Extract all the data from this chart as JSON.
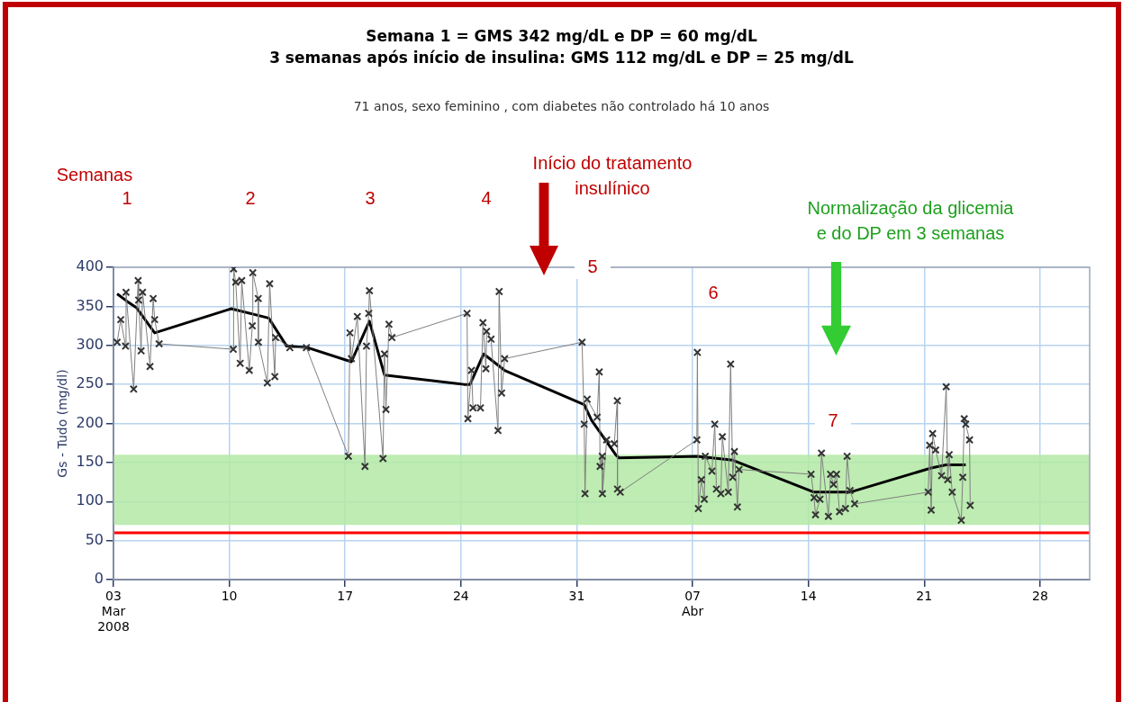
{
  "chart_data": {
    "type": "line",
    "title": "Semana 1 = GMS 342 mg/dL e DP = 60 mg/dL\n3 semanas após início de insulina: GMS 112 mg/dL e DP = 25 mg/dL",
    "subtitle": "71 anos, sexo feminino , com diabetes não controlado há 10 anos",
    "ylabel": "Gs - Tudo (mg/dl)",
    "annotations": [
      "Semanas",
      "1",
      "2",
      "3",
      "4",
      "5",
      "6",
      "7",
      "Início do tratamento insulínico",
      "Normalização da glicemia e do DP em 3 semanas"
    ],
    "xlim": [
      "2008-03-03",
      "2008-05-01"
    ],
    "xticks": [
      {
        "value": "2008-03-03",
        "label": "03\nMar\n2008"
      },
      {
        "value": "2008-03-10",
        "label": "10"
      },
      {
        "value": "2008-03-17",
        "label": "17"
      },
      {
        "value": "2008-03-24",
        "label": "24"
      },
      {
        "value": "2008-03-31",
        "label": "31"
      },
      {
        "value": "2008-04-07",
        "label": "07\nAbr"
      },
      {
        "value": "2008-04-14",
        "label": "14"
      },
      {
        "value": "2008-04-21",
        "label": "21"
      },
      {
        "value": "2008-04-28",
        "label": "28"
      }
    ],
    "ylim": [
      0,
      400
    ],
    "yticks": [
      0,
      50,
      100,
      150,
      200,
      250,
      300,
      350,
      400
    ],
    "grid": true,
    "legend": false,
    "bands": [
      {
        "axis": "y",
        "from": 70,
        "to": 160,
        "color": "#b3e9a5"
      }
    ],
    "ref_lines": [
      {
        "axis": "y",
        "value": 60,
        "color": "#ff0000"
      }
    ],
    "series": [
      {
        "marker": "cross",
        "color": "#7f7f7f",
        "x": [
          "2008-03-03T05:17",
          "2008-03-03T10:34",
          "2008-03-03T17:31",
          "2008-03-03T18:14",
          "2008-03-04T05:17",
          "2008-03-04T11:46",
          "2008-03-04T12:29",
          "2008-03-04T16:05",
          "2008-03-04T18:14",
          "2008-03-05T05:02",
          "2008-03-05T09:36",
          "2008-03-05T11:46",
          "2008-03-05T18:14",
          "2008-03-10T05:46",
          "2008-03-10T06:14",
          "2008-03-10T09:22",
          "2008-03-10T15:50",
          "2008-03-10T18:00",
          "2008-03-11T05:02",
          "2008-03-11T09:22",
          "2008-03-11T10:05",
          "2008-03-11T18:00",
          "2008-03-11T18:14",
          "2008-03-12T07:12",
          "2008-03-12T10:34",
          "2008-03-12T18:00",
          "2008-03-12T19:12",
          "2008-03-13T15:50",
          "2008-03-14T15:50",
          "2008-03-17T04:48",
          "2008-03-17T06:58",
          "2008-03-17T09:07",
          "2008-03-17T17:46",
          "2008-03-18T04:48",
          "2008-03-18T06:58",
          "2008-03-18T10:19",
          "2008-03-18T11:17",
          "2008-03-19T06:58",
          "2008-03-19T09:07",
          "2008-03-19T11:17",
          "2008-03-19T15:36",
          "2008-03-19T19:55",
          "2008-03-24T08:53",
          "2008-03-24T10:05",
          "2008-03-24T15:22",
          "2008-03-24T17:31",
          "2008-03-25T04:19",
          "2008-03-25T07:55",
          "2008-03-25T12:14",
          "2008-03-25T13:12",
          "2008-03-25T19:41",
          "2008-03-26T05:46",
          "2008-03-26T07:26",
          "2008-03-26T11:02",
          "2008-03-26T15:22",
          "2008-03-31T07:41",
          "2008-03-31T10:48",
          "2008-03-31T12:00",
          "2008-03-31T15:07",
          "2008-04-01T05:31",
          "2008-04-01T08:38",
          "2008-04-01T09:50",
          "2008-04-01T12:58",
          "2008-04-01T13:12",
          "2008-04-01T19:26",
          "2008-04-02T06:29",
          "2008-04-02T10:48",
          "2008-04-02T11:02",
          "2008-04-02T15:07",
          "2008-04-07T06:14",
          "2008-04-07T06:58",
          "2008-04-07T08:24",
          "2008-04-07T12:43",
          "2008-04-07T17:02",
          "2008-04-07T18:29",
          "2008-04-08T04:05",
          "2008-04-08T08:10",
          "2008-04-08T10:34",
          "2008-04-08T17:02",
          "2008-04-08T19:12",
          "2008-04-09T03:50",
          "2008-04-09T07:12",
          "2008-04-09T10:19",
          "2008-04-09T12:43",
          "2008-04-09T17:02",
          "2008-04-09T19:26",
          "2008-04-14T03:50",
          "2008-04-14T08:10",
          "2008-04-14T10:19",
          "2008-04-14T16:48",
          "2008-04-14T18:58",
          "2008-04-15T05:02",
          "2008-04-15T08:10",
          "2008-04-15T12:29",
          "2008-04-15T16:48",
          "2008-04-15T21:07",
          "2008-04-16T05:46",
          "2008-04-16T08:10",
          "2008-04-16T12:29",
          "2008-04-16T18:58",
          "2008-04-21T05:46",
          "2008-04-21T07:55",
          "2008-04-21T10:05",
          "2008-04-21T12:14",
          "2008-04-21T16:34",
          "2008-04-22T01:12",
          "2008-04-22T07:55",
          "2008-04-22T10:05",
          "2008-04-22T12:14",
          "2008-04-22T16:34",
          "2008-04-23T05:46",
          "2008-04-23T07:55",
          "2008-04-23T10:05",
          "2008-04-23T12:14",
          "2008-04-23T17:46",
          "2008-04-23T18:43"
        ],
        "values": [
          304,
          333,
          299,
          368,
          244,
          383,
          358,
          293,
          368,
          273,
          360,
          333,
          302,
          295,
          398,
          381,
          277,
          383,
          268,
          325,
          393,
          360,
          304,
          252,
          379,
          260,
          310,
          297,
          297,
          158,
          316,
          283,
          337,
          145,
          299,
          341,
          370,
          155,
          289,
          218,
          327,
          310,
          341,
          206,
          268,
          220,
          220,
          329,
          270,
          318,
          308,
          191,
          369,
          239,
          283,
          304,
          199,
          110,
          231,
          208,
          266,
          145,
          158,
          110,
          179,
          174,
          229,
          116,
          112,
          179,
          291,
          91,
          128,
          103,
          158,
          139,
          199,
          116,
          110,
          183,
          112,
          276,
          131,
          164,
          93,
          141,
          135,
          105,
          83,
          103,
          162,
          81,
          135,
          122,
          135,
          87,
          91,
          158,
          114,
          97,
          112,
          172,
          89,
          187,
          166,
          133,
          247,
          128,
          160,
          112,
          76,
          131,
          206,
          199,
          179,
          95
        ]
      },
      {
        "marker": "none",
        "color": "#000000",
        "x": [
          "2008-03-03T05:17",
          "2008-03-03T20:24",
          "2008-03-04T09:36",
          "2008-03-05T11:46",
          "2008-03-10T02:53",
          "2008-03-12T09:07",
          "2008-03-13T11:17",
          "2008-03-14T18:00",
          "2008-03-17T09:07",
          "2008-03-18T11:17",
          "2008-03-19T09:07",
          "2008-03-24T04:34",
          "2008-03-24T13:12",
          "2008-03-25T08:53",
          "2008-03-26T15:22",
          "2008-03-31T10:48",
          "2008-03-31T21:36",
          "2008-04-02T08:24",
          "2008-04-02T12:58",
          "2008-04-07T06:14",
          "2008-04-09T10:19",
          "2008-04-14T08:10",
          "2008-04-16T12:29",
          "2008-04-21T10:05",
          "2008-04-22T07:55",
          "2008-04-23T12:14"
        ],
        "values": [
          366,
          356,
          348,
          316,
          347,
          335,
          299,
          297,
          279,
          331,
          262,
          250,
          250,
          289,
          268,
          224,
          204,
          160,
          156,
          158,
          153,
          112,
          112,
          143,
          147,
          147
        ]
      }
    ]
  }
}
